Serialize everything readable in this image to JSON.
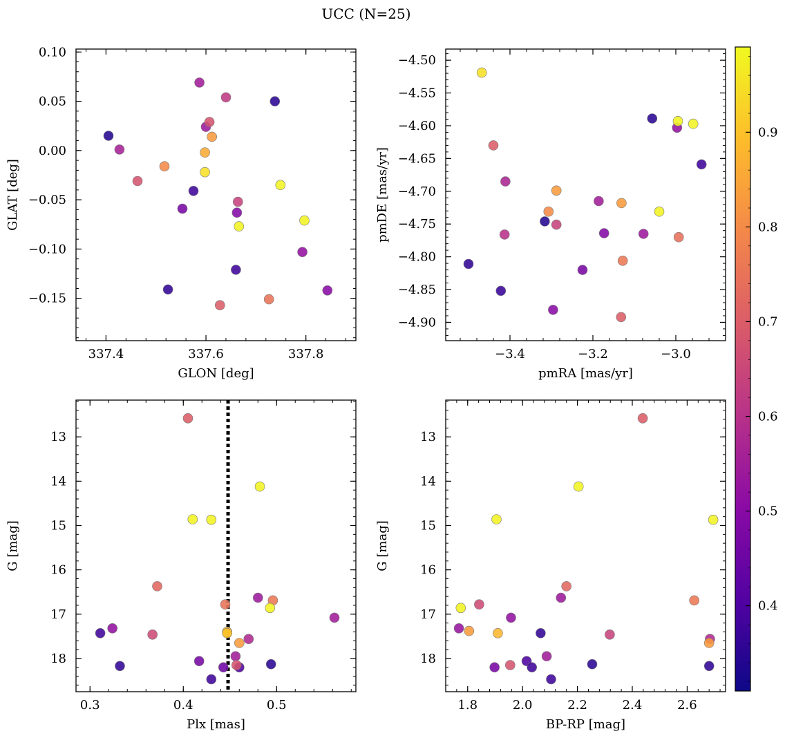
{
  "title": "UCC (N=25)",
  "colorbar": {
    "colors": [
      "#0d0887",
      "#5302a3",
      "#8b0aa5",
      "#b83289",
      "#db5c68",
      "#f48849",
      "#febd2a",
      "#f0f921"
    ],
    "range": [
      0.31,
      0.99
    ],
    "ticks": [
      0.4,
      0.5,
      0.6,
      0.7,
      0.8,
      0.9
    ],
    "tick_labels": [
      "0.4",
      "0.5",
      "0.6",
      "0.7",
      "0.8",
      "0.9"
    ]
  },
  "chart_data": [
    {
      "type": "scatter",
      "id": "glon-glat",
      "xlabel": "GLON [deg]",
      "ylabel": "GLAT [deg]",
      "xlim": [
        337.34,
        337.9
      ],
      "ylim": [
        -0.193,
        0.103
      ],
      "invert_y": false,
      "x_ticks": [
        337.4,
        337.6,
        337.8
      ],
      "x_tick_labels": [
        "337.4",
        "337.6",
        "337.8"
      ],
      "y_ticks": [
        0.1,
        0.05,
        0.0,
        -0.05,
        -0.1,
        -0.15
      ],
      "y_tick_labels": [
        "0.10",
        "0.05",
        "0.00",
        "−0.05",
        "−0.10",
        "−0.15"
      ],
      "x": [
        337.405,
        337.738,
        337.427,
        337.587,
        337.64,
        337.6,
        337.607,
        337.612,
        337.598,
        337.517,
        337.598,
        337.463,
        337.749,
        337.575,
        337.553,
        337.664,
        337.662,
        337.666,
        337.797,
        337.793,
        337.524,
        337.66,
        337.628,
        337.726,
        337.843
      ],
      "y": [
        0.015,
        0.05,
        0.001,
        0.069,
        0.054,
        0.024,
        0.029,
        0.014,
        -0.002,
        -0.016,
        -0.022,
        -0.031,
        -0.035,
        -0.041,
        -0.059,
        -0.052,
        -0.063,
        -0.077,
        -0.071,
        -0.103,
        -0.141,
        -0.121,
        -0.157,
        -0.151,
        -0.142
      ],
      "c": [
        0.34,
        0.35,
        0.56,
        0.55,
        0.62,
        0.54,
        0.68,
        0.83,
        0.86,
        0.8,
        0.95,
        0.68,
        0.98,
        0.38,
        0.47,
        0.64,
        0.49,
        0.98,
        0.98,
        0.52,
        0.36,
        0.38,
        0.7,
        0.75,
        0.5
      ]
    },
    {
      "type": "scatter",
      "id": "pm",
      "xlabel": "pmRA [mas/yr]",
      "ylabel": "pmDE [mas/yr]",
      "xlim": [
        -3.555,
        -2.88
      ],
      "ylim": [
        -4.928,
        -4.483
      ],
      "invert_y": false,
      "x_ticks": [
        -3.4,
        -3.2,
        -3.0
      ],
      "x_tick_labels": [
        "−3.4",
        "−3.2",
        "−3.0"
      ],
      "y_ticks": [
        -4.5,
        -4.55,
        -4.6,
        -4.65,
        -4.7,
        -4.75,
        -4.8,
        -4.85,
        -4.9
      ],
      "y_tick_labels": [
        "−4.50",
        "−4.55",
        "−4.60",
        "−4.65",
        "−4.70",
        "−4.75",
        "−4.80",
        "−4.85",
        "−4.90"
      ],
      "x": [
        -3.468,
        -3.057,
        -2.997,
        -2.958,
        -2.995,
        -3.44,
        -2.938,
        -3.411,
        -3.288,
        -3.307,
        -3.186,
        -3.131,
        -3.04,
        -3.316,
        -3.288,
        -3.413,
        -3.173,
        -3.078,
        -2.993,
        -3.5,
        -3.128,
        -3.225,
        -3.422,
        -3.296,
        -3.132
      ],
      "y": [
        -4.519,
        -4.589,
        -4.603,
        -4.597,
        -4.593,
        -4.63,
        -4.659,
        -4.685,
        -4.699,
        -4.731,
        -4.715,
        -4.718,
        -4.731,
        -4.746,
        -4.751,
        -4.766,
        -4.764,
        -4.765,
        -4.77,
        -4.811,
        -4.806,
        -4.82,
        -4.852,
        -4.881,
        -4.892
      ],
      "c": [
        0.95,
        0.35,
        0.52,
        0.98,
        0.98,
        0.7,
        0.38,
        0.57,
        0.83,
        0.8,
        0.55,
        0.83,
        0.98,
        0.34,
        0.64,
        0.6,
        0.49,
        0.54,
        0.74,
        0.36,
        0.76,
        0.47,
        0.37,
        0.5,
        0.7
      ]
    },
    {
      "type": "scatter",
      "id": "plx-g",
      "xlabel": "Plx [mas]",
      "ylabel": "G [mag]",
      "xlim": [
        0.285,
        0.585
      ],
      "ylim": [
        12.17,
        18.75
      ],
      "invert_y": true,
      "x_ticks": [
        0.3,
        0.4,
        0.5
      ],
      "x_tick_labels": [
        "0.3",
        "0.4",
        "0.5"
      ],
      "y_ticks": [
        13,
        14,
        15,
        16,
        17,
        18
      ],
      "y_tick_labels": [
        "13",
        "14",
        "15",
        "16",
        "17",
        "18"
      ],
      "vline": 0.448,
      "x": [
        0.405,
        0.482,
        0.41,
        0.43,
        0.372,
        0.48,
        0.496,
        0.493,
        0.445,
        0.562,
        0.447,
        0.311,
        0.324,
        0.367,
        0.47,
        0.46,
        0.456,
        0.332,
        0.417,
        0.443,
        0.494,
        0.46,
        0.43,
        0.447,
        0.457
      ],
      "y": [
        12.58,
        14.12,
        14.86,
        14.87,
        16.37,
        16.63,
        16.69,
        16.86,
        16.78,
        17.08,
        17.4,
        17.43,
        17.32,
        17.46,
        17.56,
        17.65,
        17.95,
        18.17,
        18.06,
        18.2,
        18.13,
        18.2,
        18.47,
        17.43,
        18.15
      ],
      "c": [
        0.7,
        0.98,
        0.98,
        0.98,
        0.72,
        0.54,
        0.76,
        0.98,
        0.75,
        0.55,
        0.88,
        0.38,
        0.52,
        0.66,
        0.58,
        0.83,
        0.55,
        0.36,
        0.47,
        0.45,
        0.35,
        0.4,
        0.38,
        0.9,
        0.68
      ]
    },
    {
      "type": "scatter",
      "id": "color-g",
      "xlabel": "BP-RP [mag]",
      "ylabel": "G [mag]",
      "xlim": [
        1.72,
        2.74
      ],
      "ylim": [
        12.17,
        18.75
      ],
      "invert_y": true,
      "x_ticks": [
        1.8,
        2.0,
        2.2,
        2.4,
        2.6
      ],
      "x_tick_labels": [
        "1.8",
        "2.0",
        "2.2",
        "2.4",
        "2.6"
      ],
      "y_ticks": [
        13,
        14,
        15,
        16,
        17,
        18
      ],
      "y_tick_labels": [
        "13",
        "14",
        "15",
        "16",
        "17",
        "18"
      ],
      "x": [
        2.438,
        2.204,
        1.905,
        2.695,
        2.16,
        2.14,
        2.626,
        1.775,
        1.842,
        1.958,
        1.768,
        1.805,
        1.91,
        2.066,
        2.318,
        2.683,
        2.68,
        2.088,
        2.015,
        1.898,
        1.955,
        2.034,
        2.254,
        2.104,
        2.68
      ],
      "y": [
        12.58,
        14.12,
        14.86,
        14.87,
        16.37,
        16.63,
        16.69,
        16.86,
        16.78,
        17.08,
        17.32,
        17.38,
        17.43,
        17.43,
        17.46,
        17.56,
        17.65,
        17.95,
        18.06,
        18.2,
        18.15,
        18.2,
        18.13,
        18.47,
        18.17
      ],
      "c": [
        0.7,
        0.98,
        0.98,
        0.98,
        0.72,
        0.54,
        0.76,
        0.98,
        0.66,
        0.52,
        0.53,
        0.83,
        0.88,
        0.36,
        0.64,
        0.58,
        0.83,
        0.55,
        0.4,
        0.47,
        0.68,
        0.38,
        0.35,
        0.38,
        0.36
      ]
    }
  ]
}
